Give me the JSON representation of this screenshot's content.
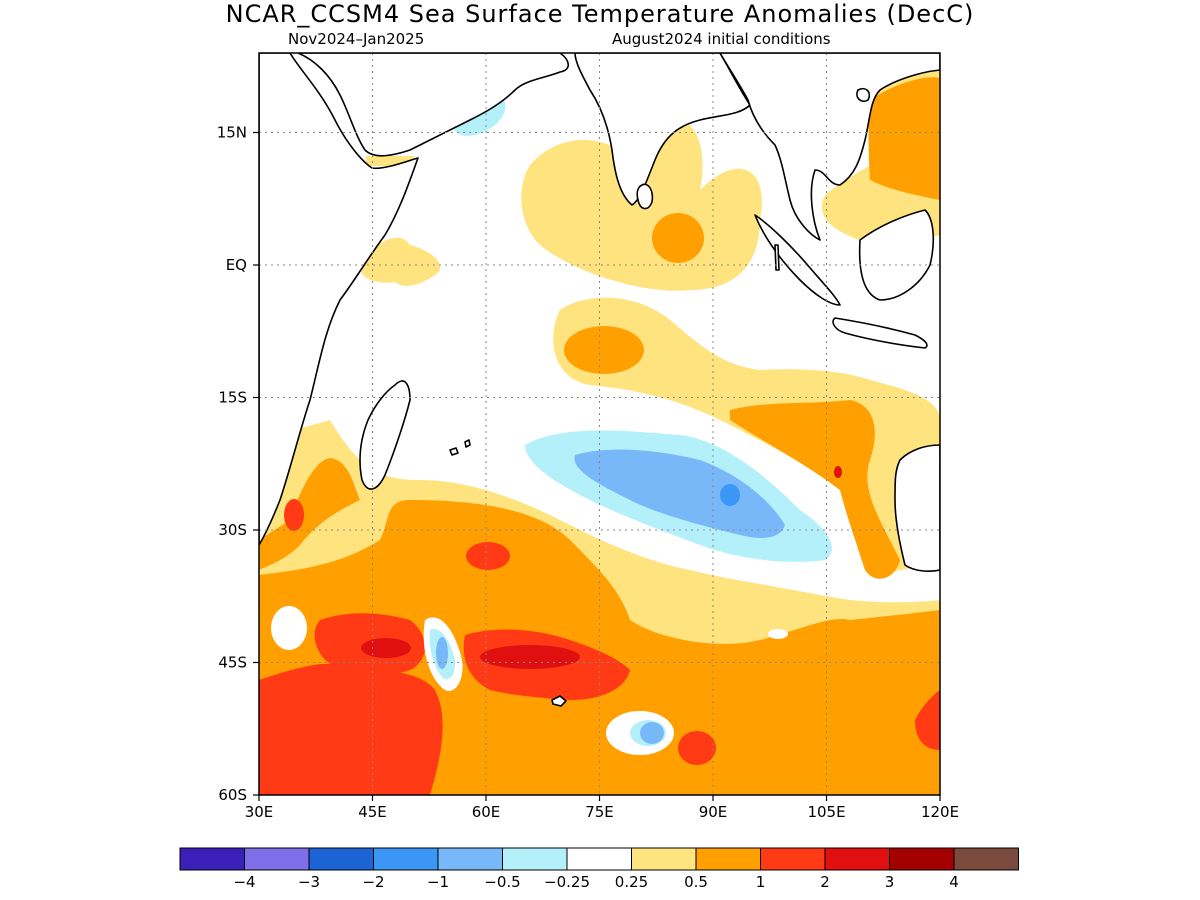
{
  "title": "NCAR_CCSM4 Sea Surface Temperature Anomalies (DecC)",
  "subtitle_left": "Nov2024–Jan2025",
  "subtitle_right": "August2024 initial conditions",
  "map": {
    "lon_range": [
      30,
      120
    ],
    "lat_range": [
      -60,
      24
    ],
    "x_ticks": [
      {
        "value": 30,
        "label": "30E"
      },
      {
        "value": 45,
        "label": "45E"
      },
      {
        "value": 60,
        "label": "60E"
      },
      {
        "value": 75,
        "label": "75E"
      },
      {
        "value": 90,
        "label": "90E"
      },
      {
        "value": 105,
        "label": "105E"
      },
      {
        "value": 120,
        "label": "120E"
      }
    ],
    "y_ticks": [
      {
        "value": 15,
        "label": "15N"
      },
      {
        "value": 0,
        "label": "EQ"
      },
      {
        "value": -15,
        "label": "15S"
      },
      {
        "value": -30,
        "label": "30S"
      },
      {
        "value": -45,
        "label": "45S"
      },
      {
        "value": -60,
        "label": "60S"
      }
    ],
    "grid": true
  },
  "colorbar": {
    "colors": [
      "#3a1fb8",
      "#7e6ee8",
      "#1c64d6",
      "#3c96f5",
      "#78b8f8",
      "#b4f0fa",
      "#ffffff",
      "#ffe37e",
      "#ffa000",
      "#ff3a14",
      "#e01010",
      "#a50000",
      "#7a4a3e"
    ],
    "labels": [
      "−4",
      "−3",
      "−2",
      "−1",
      "−0.5",
      "−0.25",
      "0.25",
      "0.5",
      "1",
      "2",
      "3",
      "4"
    ]
  }
}
